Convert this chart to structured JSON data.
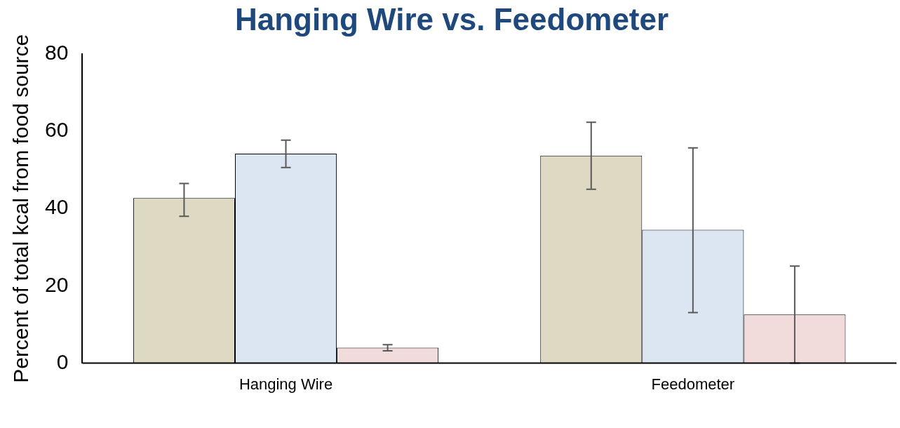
{
  "chart_data": {
    "type": "bar",
    "title": "Hanging Wire vs. Feedometer",
    "ylabel": "Percent of total kcal from food source",
    "categories": [
      "Hanging Wire",
      "Feedometer"
    ],
    "series": [
      {
        "color": "#ddd9c3",
        "values": [
          42.7,
          53.7
        ],
        "errors": [
          [
            38,
            46.5
          ],
          [
            45,
            62.3
          ]
        ]
      },
      {
        "color": "#dce6f2",
        "values": [
          54.2,
          34.5
        ],
        "errors": [
          [
            50.6,
            57.7
          ],
          [
            13.1,
            55.7
          ]
        ]
      },
      {
        "color": "#f2dcdb",
        "values": [
          4,
          12.6
        ],
        "errors": [
          [
            3.2,
            4.8
          ],
          [
            0,
            25.1
          ]
        ]
      }
    ],
    "ylim": [
      0,
      80
    ],
    "yticks": [
      0,
      20,
      40,
      60,
      80
    ],
    "grid": false,
    "legend": false
  }
}
